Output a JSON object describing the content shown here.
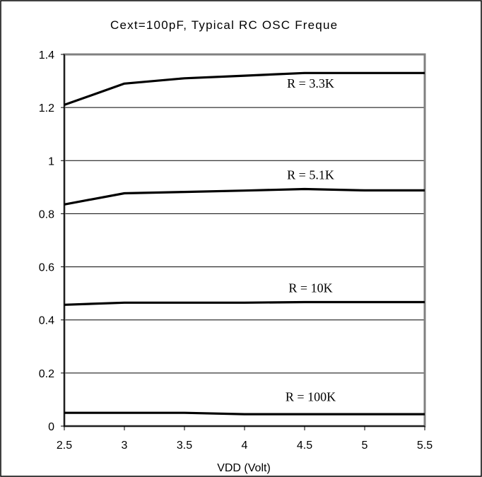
{
  "chart_data": {
    "type": "line",
    "title": "Cext=100pF,  Typical  RC  OSC  Freque",
    "xlabel": "VDD (Volt)",
    "ylabel": "",
    "xlim": [
      2.5,
      5.5
    ],
    "ylim": [
      0,
      1.4
    ],
    "x_ticks": [
      "2.5",
      "3",
      "3.5",
      "4",
      "4.5",
      "5",
      "5.5"
    ],
    "y_ticks": [
      "0",
      "0.2",
      "0.4",
      "0.6",
      "0.8",
      "1",
      "1.2",
      "1.4"
    ],
    "grid": "horizontal",
    "x": [
      2.5,
      3,
      3.5,
      4,
      4.5,
      5,
      5.5
    ],
    "series": [
      {
        "name": "R = 3.3K",
        "values": [
          1.21,
          1.29,
          1.31,
          1.32,
          1.33,
          1.33,
          1.33
        ]
      },
      {
        "name": "R = 5.1K",
        "values": [
          0.835,
          0.877,
          0.882,
          0.887,
          0.893,
          0.888,
          0.888
        ]
      },
      {
        "name": "R = 10K",
        "values": [
          0.457,
          0.465,
          0.465,
          0.465,
          0.467,
          0.467,
          0.467
        ]
      },
      {
        "name": "R = 100K",
        "values": [
          0.05,
          0.05,
          0.05,
          0.045,
          0.045,
          0.045,
          0.045
        ]
      }
    ],
    "line_color": "#000000",
    "grid_color": "#000000",
    "plot_border_color": "#808080"
  }
}
